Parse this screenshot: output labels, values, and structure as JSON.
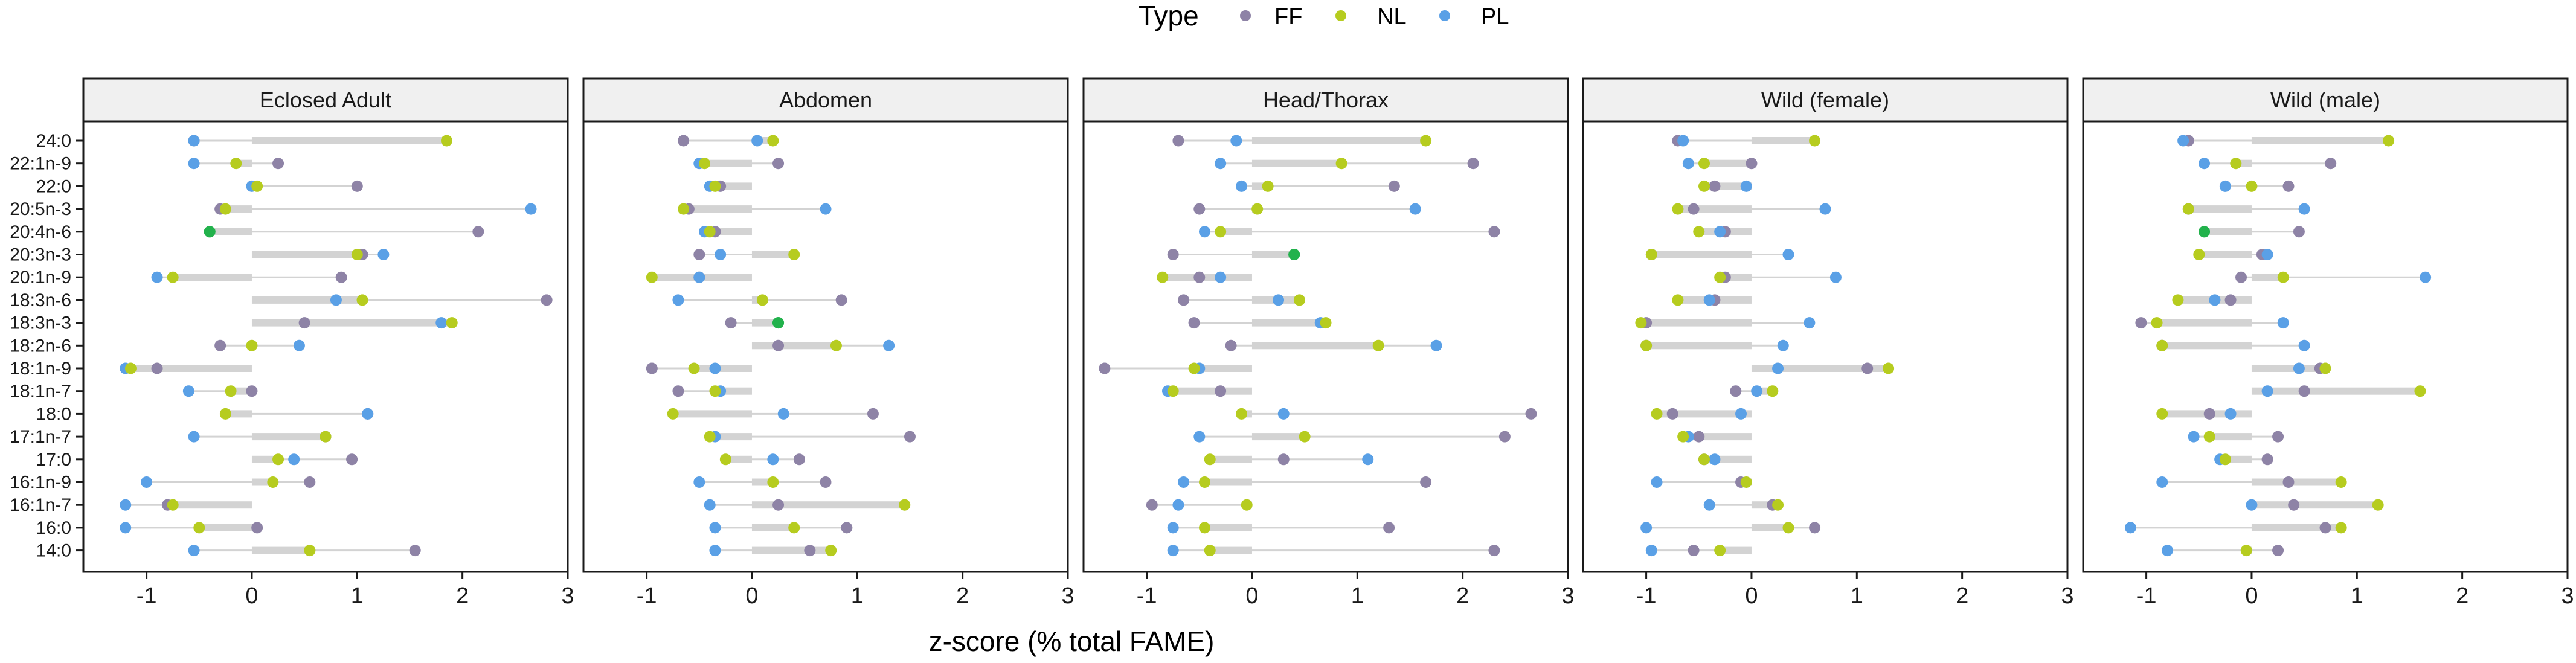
{
  "legend": {
    "title": "Type",
    "items": [
      {
        "label": "FF",
        "color": "#8e83a6"
      },
      {
        "label": "NL",
        "color": "#b6cc1f"
      },
      {
        "label": "PL",
        "color": "#5aa0e6"
      }
    ]
  },
  "overlap_color": "#22b24c",
  "segment_color": "#d3d3d3",
  "chart_data": {
    "type": "dumbbell-dotplot",
    "xlabel": "z-score (% total FAME)",
    "xlim": [
      -1.6,
      3.0
    ],
    "xticks": [
      -1,
      0,
      1,
      2,
      3
    ],
    "categories": [
      "24:0",
      "22:1n-9",
      "22:0",
      "20:5n-3",
      "20:4n-6",
      "20:3n-3",
      "20:1n-9",
      "18:3n-6",
      "18:3n-3",
      "18:2n-6",
      "18:1n-9",
      "18:1n-7",
      "18:0",
      "17:1n-7",
      "17:0",
      "16:1n-9",
      "16:1n-7",
      "16:0",
      "14:0"
    ],
    "series_names": [
      "FF",
      "NL",
      "PL"
    ],
    "panels": [
      {
        "title": "Eclosed Adult",
        "FF": [
          -0.55,
          0.25,
          1.0,
          -0.3,
          2.15,
          1.05,
          0.85,
          2.8,
          0.5,
          -0.3,
          -0.9,
          0.0,
          1.1,
          0.7,
          0.95,
          0.55,
          -0.8,
          0.05,
          1.55
        ],
        "NL": [
          1.85,
          -0.15,
          0.05,
          -0.25,
          -0.4,
          1.0,
          -0.75,
          1.05,
          1.9,
          0.0,
          -1.15,
          -0.2,
          -0.25,
          0.7,
          0.25,
          0.2,
          -0.75,
          -0.5,
          0.55
        ],
        "PL": [
          -0.55,
          -0.55,
          0.0,
          2.65,
          -0.4,
          1.25,
          -0.9,
          0.8,
          1.8,
          0.45,
          -1.2,
          -0.6,
          1.1,
          -0.55,
          0.4,
          -1.0,
          -1.2,
          -1.2,
          -0.55
        ]
      },
      {
        "title": "Abdomen",
        "FF": [
          -0.65,
          0.25,
          -0.3,
          -0.6,
          -0.35,
          -0.5,
          -0.5,
          0.85,
          -0.2,
          0.25,
          -0.95,
          -0.7,
          1.15,
          1.5,
          0.45,
          0.7,
          0.25,
          0.9,
          0.55
        ],
        "NL": [
          0.2,
          -0.45,
          -0.35,
          -0.65,
          -0.4,
          0.4,
          -0.95,
          0.1,
          0.25,
          0.8,
          -0.55,
          -0.35,
          -0.75,
          -0.4,
          -0.25,
          0.2,
          1.45,
          0.4,
          0.75
        ],
        "PL": [
          0.05,
          -0.5,
          -0.4,
          0.7,
          -0.45,
          -0.3,
          -0.5,
          -0.7,
          0.25,
          1.3,
          -0.35,
          -0.3,
          0.3,
          -0.35,
          0.2,
          -0.5,
          -0.4,
          -0.35,
          -0.35
        ]
      },
      {
        "title": "Head/Thorax",
        "FF": [
          -0.7,
          2.1,
          1.35,
          -0.5,
          2.3,
          -0.75,
          -0.5,
          -0.65,
          -0.55,
          -0.2,
          -1.4,
          -0.3,
          2.65,
          2.4,
          0.3,
          1.65,
          -0.95,
          1.3,
          2.3
        ],
        "NL": [
          1.65,
          0.85,
          0.15,
          0.05,
          -0.3,
          0.4,
          -0.85,
          0.45,
          0.7,
          1.2,
          -0.55,
          -0.75,
          -0.1,
          0.5,
          -0.4,
          -0.45,
          -0.05,
          -0.45,
          -0.4
        ],
        "PL": [
          -0.15,
          -0.3,
          -0.1,
          1.55,
          -0.45,
          0.4,
          -0.3,
          0.25,
          0.65,
          1.75,
          -0.5,
          -0.8,
          0.3,
          -0.5,
          1.1,
          -0.65,
          -0.7,
          -0.75,
          -0.75
        ]
      },
      {
        "title": "Wild (female)",
        "FF": [
          -0.7,
          0.0,
          -0.35,
          -0.55,
          -0.25,
          -0.95,
          -0.25,
          -0.35,
          -1.0,
          -1.0,
          1.1,
          -0.15,
          -0.75,
          -0.5,
          -0.45,
          -0.1,
          0.2,
          0.6,
          -0.55
        ],
        "NL": [
          0.6,
          -0.45,
          -0.45,
          -0.7,
          -0.5,
          -0.95,
          -0.3,
          -0.7,
          -1.05,
          -1.0,
          1.3,
          0.2,
          -0.9,
          -0.65,
          -0.45,
          -0.05,
          0.25,
          0.35,
          -0.3
        ],
        "PL": [
          -0.65,
          -0.6,
          -0.05,
          0.7,
          -0.3,
          0.35,
          0.8,
          -0.4,
          0.55,
          0.3,
          0.25,
          0.05,
          -0.1,
          -0.6,
          -0.35,
          -0.9,
          -0.4,
          -1.0,
          -0.95
        ]
      },
      {
        "title": "Wild (male)",
        "FF": [
          -0.6,
          0.75,
          0.35,
          -0.6,
          0.45,
          0.1,
          -0.1,
          -0.2,
          -1.05,
          -0.85,
          0.65,
          0.5,
          -0.4,
          0.25,
          0.15,
          0.35,
          0.4,
          0.7,
          0.25
        ],
        "NL": [
          1.3,
          -0.15,
          0.0,
          -0.6,
          -0.45,
          -0.5,
          0.3,
          -0.7,
          -0.9,
          -0.85,
          0.7,
          1.6,
          -0.85,
          -0.4,
          -0.25,
          0.85,
          1.2,
          0.85,
          -0.05
        ],
        "PL": [
          -0.65,
          -0.45,
          -0.25,
          0.5,
          -0.45,
          0.15,
          1.65,
          -0.35,
          0.3,
          0.5,
          0.45,
          0.15,
          -0.2,
          -0.55,
          -0.3,
          -0.85,
          0.0,
          -1.15,
          -0.8
        ]
      }
    ]
  }
}
